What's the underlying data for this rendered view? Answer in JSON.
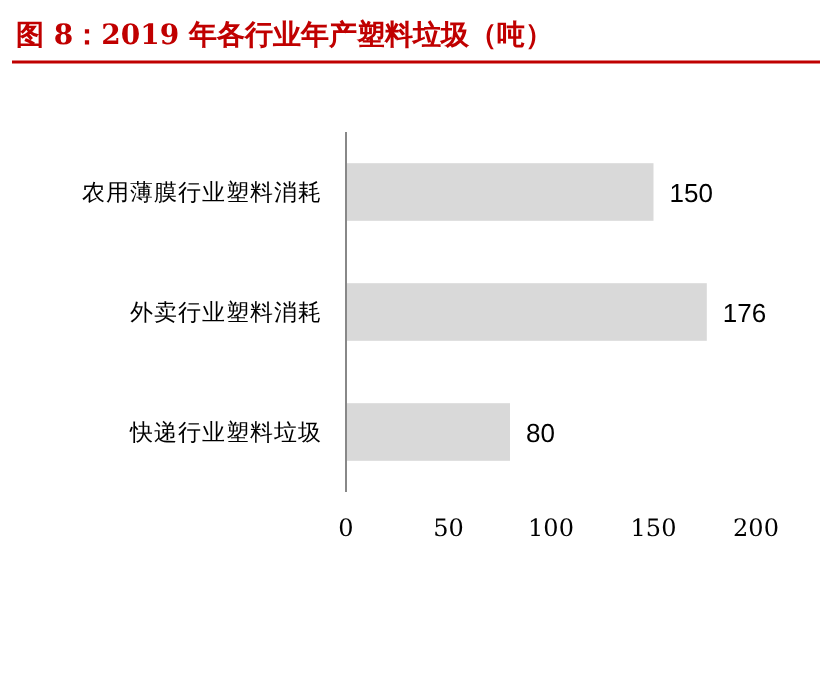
{
  "chart_data": {
    "type": "bar",
    "title": "图 8：2019 年各行业年产塑料垃圾（吨）",
    "orientation": "horizontal",
    "categories": [
      "农用薄膜行业塑料消耗",
      "外卖行业塑料消耗",
      "快递行业塑料垃圾"
    ],
    "values": [
      150,
      176,
      80
    ],
    "color": "#d9d9d9",
    "xlim": [
      0,
      200
    ],
    "xticks": [
      0,
      50,
      100,
      150,
      200
    ],
    "data_labels": true,
    "grid": false
  }
}
